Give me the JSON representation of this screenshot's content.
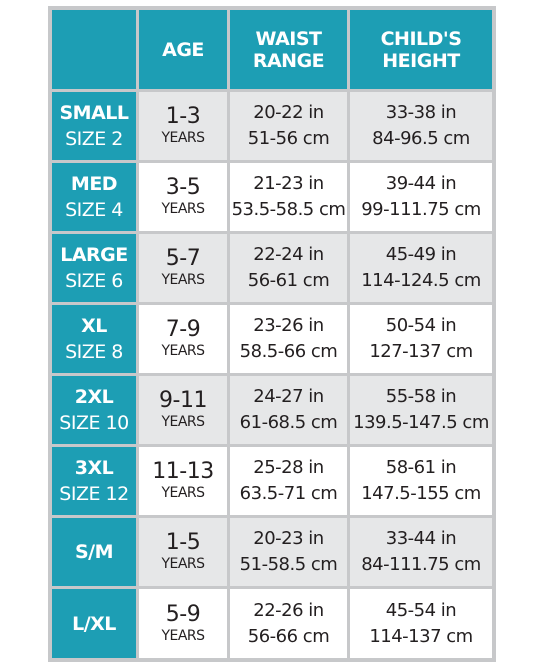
{
  "header": {
    "age": "AGE",
    "waist_line1": "WAIST",
    "waist_line2": "RANGE",
    "height_line1": "CHILD'S",
    "height_line2": "HEIGHT"
  },
  "rows": [
    {
      "size1": "SMALL",
      "size2": "SIZE 2",
      "age": "1-3",
      "age_unit": "YEARS",
      "waist_in": "20-22 in",
      "waist_cm": "51-56 cm",
      "height_in": "33-38 in",
      "height_cm": "84-96.5 cm"
    },
    {
      "size1": "MED",
      "size2": "SIZE 4",
      "age": "3-5",
      "age_unit": "YEARS",
      "waist_in": "21-23 in",
      "waist_cm": "53.5-58.5 cm",
      "height_in": "39-44 in",
      "height_cm": "99-111.75 cm"
    },
    {
      "size1": "LARGE",
      "size2": "SIZE 6",
      "age": "5-7",
      "age_unit": "YEARS",
      "waist_in": "22-24 in",
      "waist_cm": "56-61 cm",
      "height_in": "45-49 in",
      "height_cm": "114-124.5 cm"
    },
    {
      "size1": "XL",
      "size2": "SIZE 8",
      "age": "7-9",
      "age_unit": "YEARS",
      "waist_in": "23-26 in",
      "waist_cm": "58.5-66 cm",
      "height_in": "50-54 in",
      "height_cm": "127-137 cm"
    },
    {
      "size1": "2XL",
      "size2": "SIZE 10",
      "age": "9-11",
      "age_unit": "YEARS",
      "waist_in": "24-27 in",
      "waist_cm": "61-68.5 cm",
      "height_in": "55-58 in",
      "height_cm": "139.5-147.5 cm"
    },
    {
      "size1": "3XL",
      "size2": "SIZE 12",
      "age": "11-13",
      "age_unit": "YEARS",
      "waist_in": "25-28 in",
      "waist_cm": "63.5-71 cm",
      "height_in": "58-61 in",
      "height_cm": "147.5-155 cm"
    },
    {
      "size1": "S/M",
      "size2": "",
      "age": "1-5",
      "age_unit": "YEARS",
      "waist_in": "20-23 in",
      "waist_cm": "51-58.5 cm",
      "height_in": "33-44 in",
      "height_cm": "84-111.75 cm"
    },
    {
      "size1": "L/XL",
      "size2": "",
      "age": "5-9",
      "age_unit": "YEARS",
      "waist_in": "22-26 in",
      "waist_cm": "56-66 cm",
      "height_in": "45-54 in",
      "height_cm": "114-137 cm"
    }
  ],
  "colors": {
    "teal": "#1d9eb4",
    "light_grey": "#e6e7e8",
    "grid_line": "#c7c8ca",
    "text": "#231f20"
  }
}
